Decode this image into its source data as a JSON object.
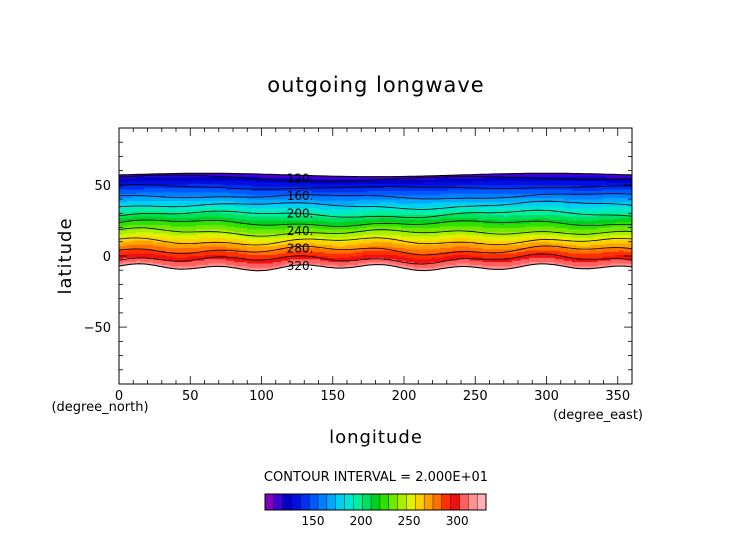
{
  "chart_data": {
    "type": "heatmap",
    "title": "outgoing longwave",
    "xlabel": "longitude",
    "ylabel": "latitude",
    "x_unit": "(degree_east)",
    "y_unit": "(degree_north)",
    "xlim": [
      0,
      360
    ],
    "ylim": [
      -90,
      90
    ],
    "x_ticks": [
      0,
      50,
      100,
      150,
      200,
      250,
      300,
      350
    ],
    "y_ticks": [
      -50,
      0,
      50
    ],
    "contour_interval_label": "CONTOUR INTERVAL = 2.000E+01",
    "contour_labels": [
      "120.",
      "160.",
      "200.",
      "240.",
      "280.",
      "320."
    ],
    "colorbar": {
      "ticks": [
        150,
        200,
        250,
        300
      ],
      "range": [
        100,
        330
      ],
      "colors": [
        "#8000c0",
        "#4000d0",
        "#0000c8",
        "#0010e0",
        "#0030f0",
        "#0058ff",
        "#0080ff",
        "#00a8ff",
        "#00d0f0",
        "#00e8d0",
        "#00f0a0",
        "#00e060",
        "#00d020",
        "#30e000",
        "#70e800",
        "#a8f000",
        "#e0f000",
        "#ffd000",
        "#ffa000",
        "#ff7000",
        "#ff3000",
        "#f01010",
        "#ff6060",
        "#ff9090",
        "#ffb0b0"
      ]
    },
    "field": {
      "lat_top": 57,
      "lat_bottom": -8,
      "lat_north_value": 112,
      "lat_south_value": 318,
      "saturation_value": 310
    }
  }
}
